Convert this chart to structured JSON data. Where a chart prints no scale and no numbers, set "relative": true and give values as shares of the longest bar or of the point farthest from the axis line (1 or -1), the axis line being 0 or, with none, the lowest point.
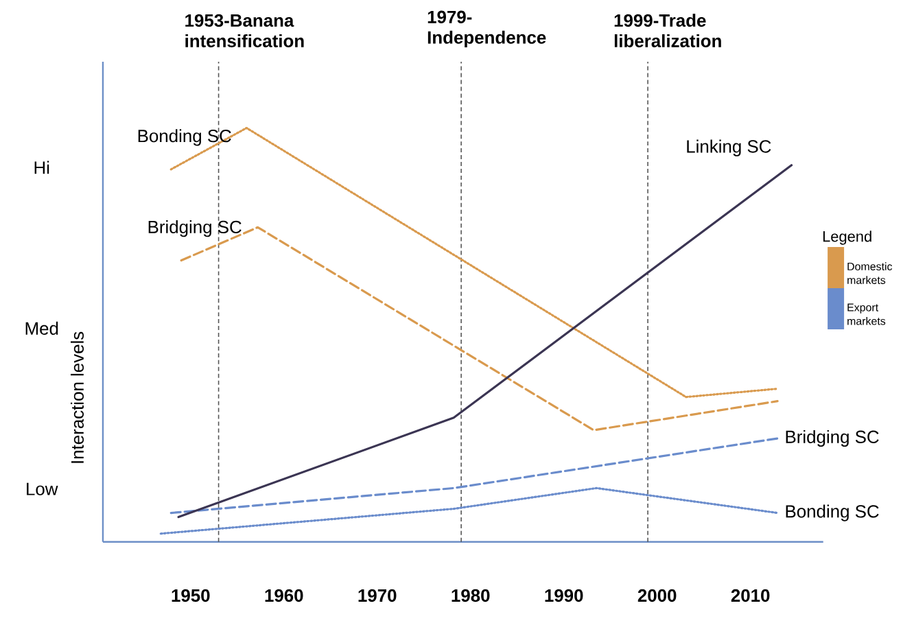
{
  "chart_data": {
    "type": "line",
    "relative": true,
    "ylabel": "Interaction levels",
    "legend_title": "Legend",
    "legend": "right",
    "grid": false,
    "annotations": [
      "Low",
      "Med",
      "Hi",
      "Domestic markets",
      "Export markets"
    ],
    "xlim": [
      1940.6,
      2017.8
    ],
    "xticks": [
      1950,
      1960,
      1970,
      1980,
      1990,
      2000,
      2010
    ],
    "series": [
      {
        "name": "Bonding SC",
        "color": "#d99a4e",
        "line_style": "dotted",
        "x": [
          1947.9,
          1956.0,
          2003.1,
          2012.9
        ],
        "values": [
          0.9,
          1.0,
          0.35,
          0.37
        ]
      },
      {
        "name": "Bridging SC",
        "color": "#d99a4e",
        "line_style": "dashed",
        "x": [
          1949.0,
          1957.2,
          1993.2,
          2012.9
        ],
        "values": [
          0.68,
          0.76,
          0.27,
          0.34
        ]
      },
      {
        "name": "Bridging SC",
        "color": "#6a8ccc",
        "line_style": "dashed",
        "x": [
          1947.9,
          1978.2,
          2012.9
        ],
        "values": [
          0.07,
          0.13,
          0.25
        ]
      },
      {
        "name": "Bonding SC",
        "color": "#6a8ccc",
        "line_style": "dotted",
        "x": [
          1946.8,
          1978.2,
          1993.5,
          2012.9
        ],
        "values": [
          0.02,
          0.08,
          0.13,
          0.07
        ]
      },
      {
        "name": "Linking SC",
        "color": "#3b3553",
        "line_style": "solid",
        "x": [
          1948.7,
          1978.2,
          2014.4
        ],
        "values": [
          0.06,
          0.3,
          0.91
        ]
      }
    ],
    "ref_lines": [
      {
        "axis": "x",
        "value": 1953,
        "label": "1953-Banana intensification",
        "color": "#555555",
        "line_style": "dashed"
      },
      {
        "axis": "x",
        "value": 1979,
        "label": "1979-Independence",
        "color": "#555555",
        "line_style": "dashed"
      },
      {
        "axis": "x",
        "value": 1999,
        "label": "1999-Trade liberalization",
        "color": "#555555",
        "line_style": "dashed"
      }
    ]
  }
}
